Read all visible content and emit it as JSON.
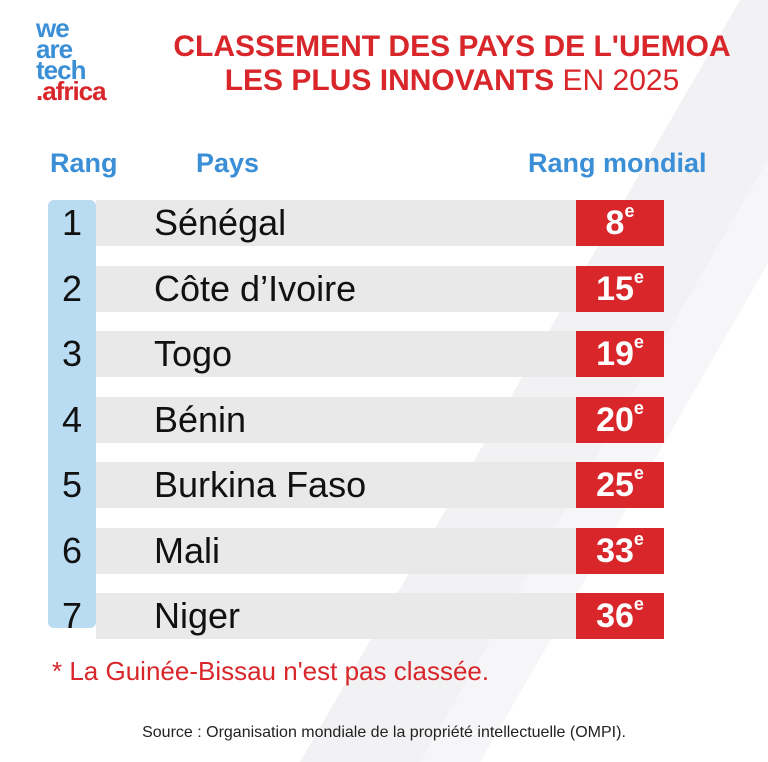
{
  "logo": {
    "line1": "we",
    "line2": "are",
    "line3": "tech",
    "line4": ".africa"
  },
  "title": {
    "line1": "CLASSEMENT DES PAYS DE L'UEMOA",
    "line2_bold": "LES PLUS INNOVANTS",
    "line2_rest": " EN 2025"
  },
  "headers": {
    "rank": "Rang",
    "country": "Pays",
    "world_rank": "Rang mondial"
  },
  "note": "* La Guinée-Bissau n'est pas classée.",
  "source": "Source : Organisation mondiale de la propriété intellectuelle (OMPI).",
  "colors": {
    "red": "#d8262a",
    "blue": "#3a8fd6",
    "light_blue": "#b9dcf3",
    "row_gray": "#e9e9ea"
  },
  "chart_data": {
    "type": "table",
    "columns": [
      "Rang",
      "Pays",
      "Rang mondial"
    ],
    "rows": [
      {
        "rank": "1",
        "country": "Sénégal",
        "world_rank": "8",
        "suffix": "e"
      },
      {
        "rank": "2",
        "country": "Côte d’Ivoire",
        "world_rank": "15",
        "suffix": "e"
      },
      {
        "rank": "3",
        "country": "Togo",
        "world_rank": "19",
        "suffix": "e"
      },
      {
        "rank": "4",
        "country": "Bénin",
        "world_rank": "20",
        "suffix": "e"
      },
      {
        "rank": "5",
        "country": "Burkina Faso",
        "world_rank": "25",
        "suffix": "e"
      },
      {
        "rank": "6",
        "country": "Mali",
        "world_rank": "33",
        "suffix": "e"
      },
      {
        "rank": "7",
        "country": "Niger",
        "world_rank": "36",
        "suffix": "e"
      }
    ]
  }
}
